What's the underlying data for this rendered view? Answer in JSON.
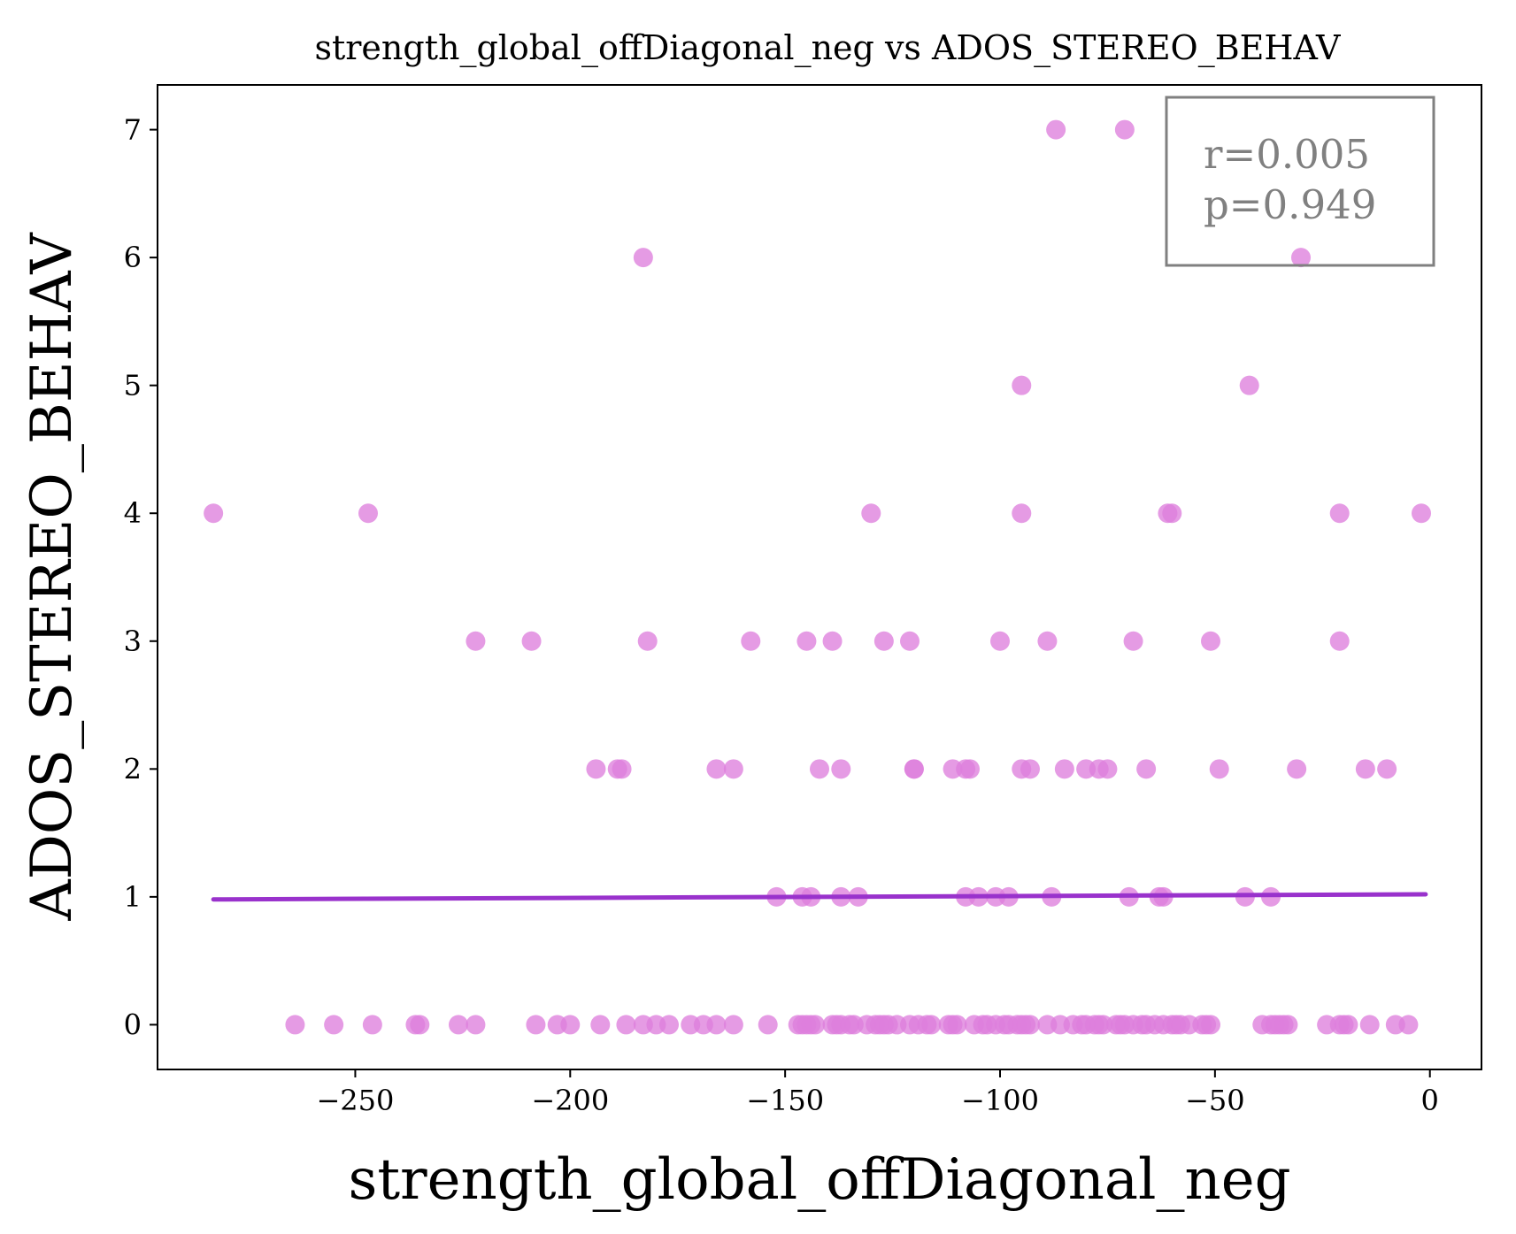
{
  "chart_data": {
    "type": "scatter",
    "title": "strength_global_offDiagonal_neg vs ADOS_STEREO_BEHAV",
    "xlabel": "strength_global_offDiagonal_neg",
    "ylabel": "ADOS_STEREO_BEHAV",
    "xlim": [
      -296,
      12
    ],
    "ylim": [
      -0.35,
      7.35
    ],
    "xticks": [
      -250,
      -200,
      -150,
      -100,
      -50,
      0
    ],
    "xtick_labels": [
      "−250",
      "−200",
      "−150",
      "−100",
      "−50",
      "0"
    ],
    "yticks": [
      0,
      1,
      2,
      3,
      4,
      5,
      6,
      7
    ],
    "ytick_labels": [
      "0",
      "1",
      "2",
      "3",
      "4",
      "5",
      "6",
      "7"
    ],
    "grid": false,
    "point_color": "#de7fdd",
    "line_color": "#9932cc",
    "regression_line": {
      "x": [
        -283,
        -1
      ],
      "y": [
        0.98,
        1.02
      ]
    },
    "annotation": {
      "lines": [
        "r=0.005",
        "p=0.949"
      ],
      "placement": "top-right",
      "text_color": "#808080",
      "border_color": "#808080"
    },
    "points": [
      {
        "x": -87,
        "y": 7
      },
      {
        "x": -71,
        "y": 7
      },
      {
        "x": -183,
        "y": 6
      },
      {
        "x": -30,
        "y": 6
      },
      {
        "x": -95,
        "y": 5
      },
      {
        "x": -42,
        "y": 5
      },
      {
        "x": -283,
        "y": 4
      },
      {
        "x": -247,
        "y": 4
      },
      {
        "x": -130,
        "y": 4
      },
      {
        "x": -95,
        "y": 4
      },
      {
        "x": -61,
        "y": 4
      },
      {
        "x": -60,
        "y": 4
      },
      {
        "x": -21,
        "y": 4
      },
      {
        "x": -2,
        "y": 4
      },
      {
        "x": -222,
        "y": 3
      },
      {
        "x": -209,
        "y": 3
      },
      {
        "x": -182,
        "y": 3
      },
      {
        "x": -158,
        "y": 3
      },
      {
        "x": -145,
        "y": 3
      },
      {
        "x": -139,
        "y": 3
      },
      {
        "x": -127,
        "y": 3
      },
      {
        "x": -121,
        "y": 3
      },
      {
        "x": -100,
        "y": 3
      },
      {
        "x": -89,
        "y": 3
      },
      {
        "x": -69,
        "y": 3
      },
      {
        "x": -51,
        "y": 3
      },
      {
        "x": -21,
        "y": 3
      },
      {
        "x": -194,
        "y": 2
      },
      {
        "x": -189,
        "y": 2
      },
      {
        "x": -188,
        "y": 2
      },
      {
        "x": -166,
        "y": 2
      },
      {
        "x": -162,
        "y": 2
      },
      {
        "x": -142,
        "y": 2
      },
      {
        "x": -137,
        "y": 2
      },
      {
        "x": -120,
        "y": 2
      },
      {
        "x": -120,
        "y": 2
      },
      {
        "x": -111,
        "y": 2
      },
      {
        "x": -108,
        "y": 2
      },
      {
        "x": -107,
        "y": 2
      },
      {
        "x": -95,
        "y": 2
      },
      {
        "x": -93,
        "y": 2
      },
      {
        "x": -85,
        "y": 2
      },
      {
        "x": -80,
        "y": 2
      },
      {
        "x": -77,
        "y": 2
      },
      {
        "x": -75,
        "y": 2
      },
      {
        "x": -66,
        "y": 2
      },
      {
        "x": -49,
        "y": 2
      },
      {
        "x": -31,
        "y": 2
      },
      {
        "x": -15,
        "y": 2
      },
      {
        "x": -10,
        "y": 2
      },
      {
        "x": -152,
        "y": 1
      },
      {
        "x": -146,
        "y": 1
      },
      {
        "x": -144,
        "y": 1
      },
      {
        "x": -137,
        "y": 1
      },
      {
        "x": -133,
        "y": 1
      },
      {
        "x": -108,
        "y": 1
      },
      {
        "x": -105,
        "y": 1
      },
      {
        "x": -101,
        "y": 1
      },
      {
        "x": -98,
        "y": 1
      },
      {
        "x": -88,
        "y": 1
      },
      {
        "x": -70,
        "y": 1
      },
      {
        "x": -63,
        "y": 1
      },
      {
        "x": -62,
        "y": 1
      },
      {
        "x": -43,
        "y": 1
      },
      {
        "x": -37,
        "y": 1
      },
      {
        "x": -264,
        "y": 0
      },
      {
        "x": -255,
        "y": 0
      },
      {
        "x": -246,
        "y": 0
      },
      {
        "x": -236,
        "y": 0
      },
      {
        "x": -235,
        "y": 0
      },
      {
        "x": -226,
        "y": 0
      },
      {
        "x": -222,
        "y": 0
      },
      {
        "x": -208,
        "y": 0
      },
      {
        "x": -203,
        "y": 0
      },
      {
        "x": -200,
        "y": 0
      },
      {
        "x": -193,
        "y": 0
      },
      {
        "x": -187,
        "y": 0
      },
      {
        "x": -183,
        "y": 0
      },
      {
        "x": -180,
        "y": 0
      },
      {
        "x": -177,
        "y": 0
      },
      {
        "x": -172,
        "y": 0
      },
      {
        "x": -169,
        "y": 0
      },
      {
        "x": -166,
        "y": 0
      },
      {
        "x": -162,
        "y": 0
      },
      {
        "x": -154,
        "y": 0
      },
      {
        "x": -147,
        "y": 0
      },
      {
        "x": -146,
        "y": 0
      },
      {
        "x": -145,
        "y": 0
      },
      {
        "x": -144,
        "y": 0
      },
      {
        "x": -143,
        "y": 0
      },
      {
        "x": -139,
        "y": 0
      },
      {
        "x": -138,
        "y": 0
      },
      {
        "x": -137,
        "y": 0
      },
      {
        "x": -135,
        "y": 0
      },
      {
        "x": -134,
        "y": 0
      },
      {
        "x": -131,
        "y": 0
      },
      {
        "x": -129,
        "y": 0
      },
      {
        "x": -128,
        "y": 0
      },
      {
        "x": -127,
        "y": 0
      },
      {
        "x": -126,
        "y": 0
      },
      {
        "x": -124,
        "y": 0
      },
      {
        "x": -121,
        "y": 0
      },
      {
        "x": -119,
        "y": 0
      },
      {
        "x": -117,
        "y": 0
      },
      {
        "x": -116,
        "y": 0
      },
      {
        "x": -112,
        "y": 0
      },
      {
        "x": -111,
        "y": 0
      },
      {
        "x": -110,
        "y": 0
      },
      {
        "x": -106,
        "y": 0
      },
      {
        "x": -104,
        "y": 0
      },
      {
        "x": -103,
        "y": 0
      },
      {
        "x": -101,
        "y": 0
      },
      {
        "x": -99,
        "y": 0
      },
      {
        "x": -98,
        "y": 0
      },
      {
        "x": -96,
        "y": 0
      },
      {
        "x": -95,
        "y": 0
      },
      {
        "x": -94,
        "y": 0
      },
      {
        "x": -93,
        "y": 0
      },
      {
        "x": -89,
        "y": 0
      },
      {
        "x": -86,
        "y": 0
      },
      {
        "x": -83,
        "y": 0
      },
      {
        "x": -81,
        "y": 0
      },
      {
        "x": -80,
        "y": 0
      },
      {
        "x": -78,
        "y": 0
      },
      {
        "x": -77,
        "y": 0
      },
      {
        "x": -76,
        "y": 0
      },
      {
        "x": -73,
        "y": 0
      },
      {
        "x": -72,
        "y": 0
      },
      {
        "x": -71,
        "y": 0
      },
      {
        "x": -69,
        "y": 0
      },
      {
        "x": -67,
        "y": 0
      },
      {
        "x": -66,
        "y": 0
      },
      {
        "x": -64,
        "y": 0
      },
      {
        "x": -62,
        "y": 0
      },
      {
        "x": -60,
        "y": 0
      },
      {
        "x": -59,
        "y": 0
      },
      {
        "x": -58,
        "y": 0
      },
      {
        "x": -56,
        "y": 0
      },
      {
        "x": -53,
        "y": 0
      },
      {
        "x": -52,
        "y": 0
      },
      {
        "x": -51,
        "y": 0
      },
      {
        "x": -39,
        "y": 0
      },
      {
        "x": -37,
        "y": 0
      },
      {
        "x": -36,
        "y": 0
      },
      {
        "x": -35,
        "y": 0
      },
      {
        "x": -34,
        "y": 0
      },
      {
        "x": -33,
        "y": 0
      },
      {
        "x": -24,
        "y": 0
      },
      {
        "x": -21,
        "y": 0
      },
      {
        "x": -20,
        "y": 0
      },
      {
        "x": -19,
        "y": 0
      },
      {
        "x": -14,
        "y": 0
      },
      {
        "x": -8,
        "y": 0
      },
      {
        "x": -5,
        "y": 0
      }
    ]
  }
}
